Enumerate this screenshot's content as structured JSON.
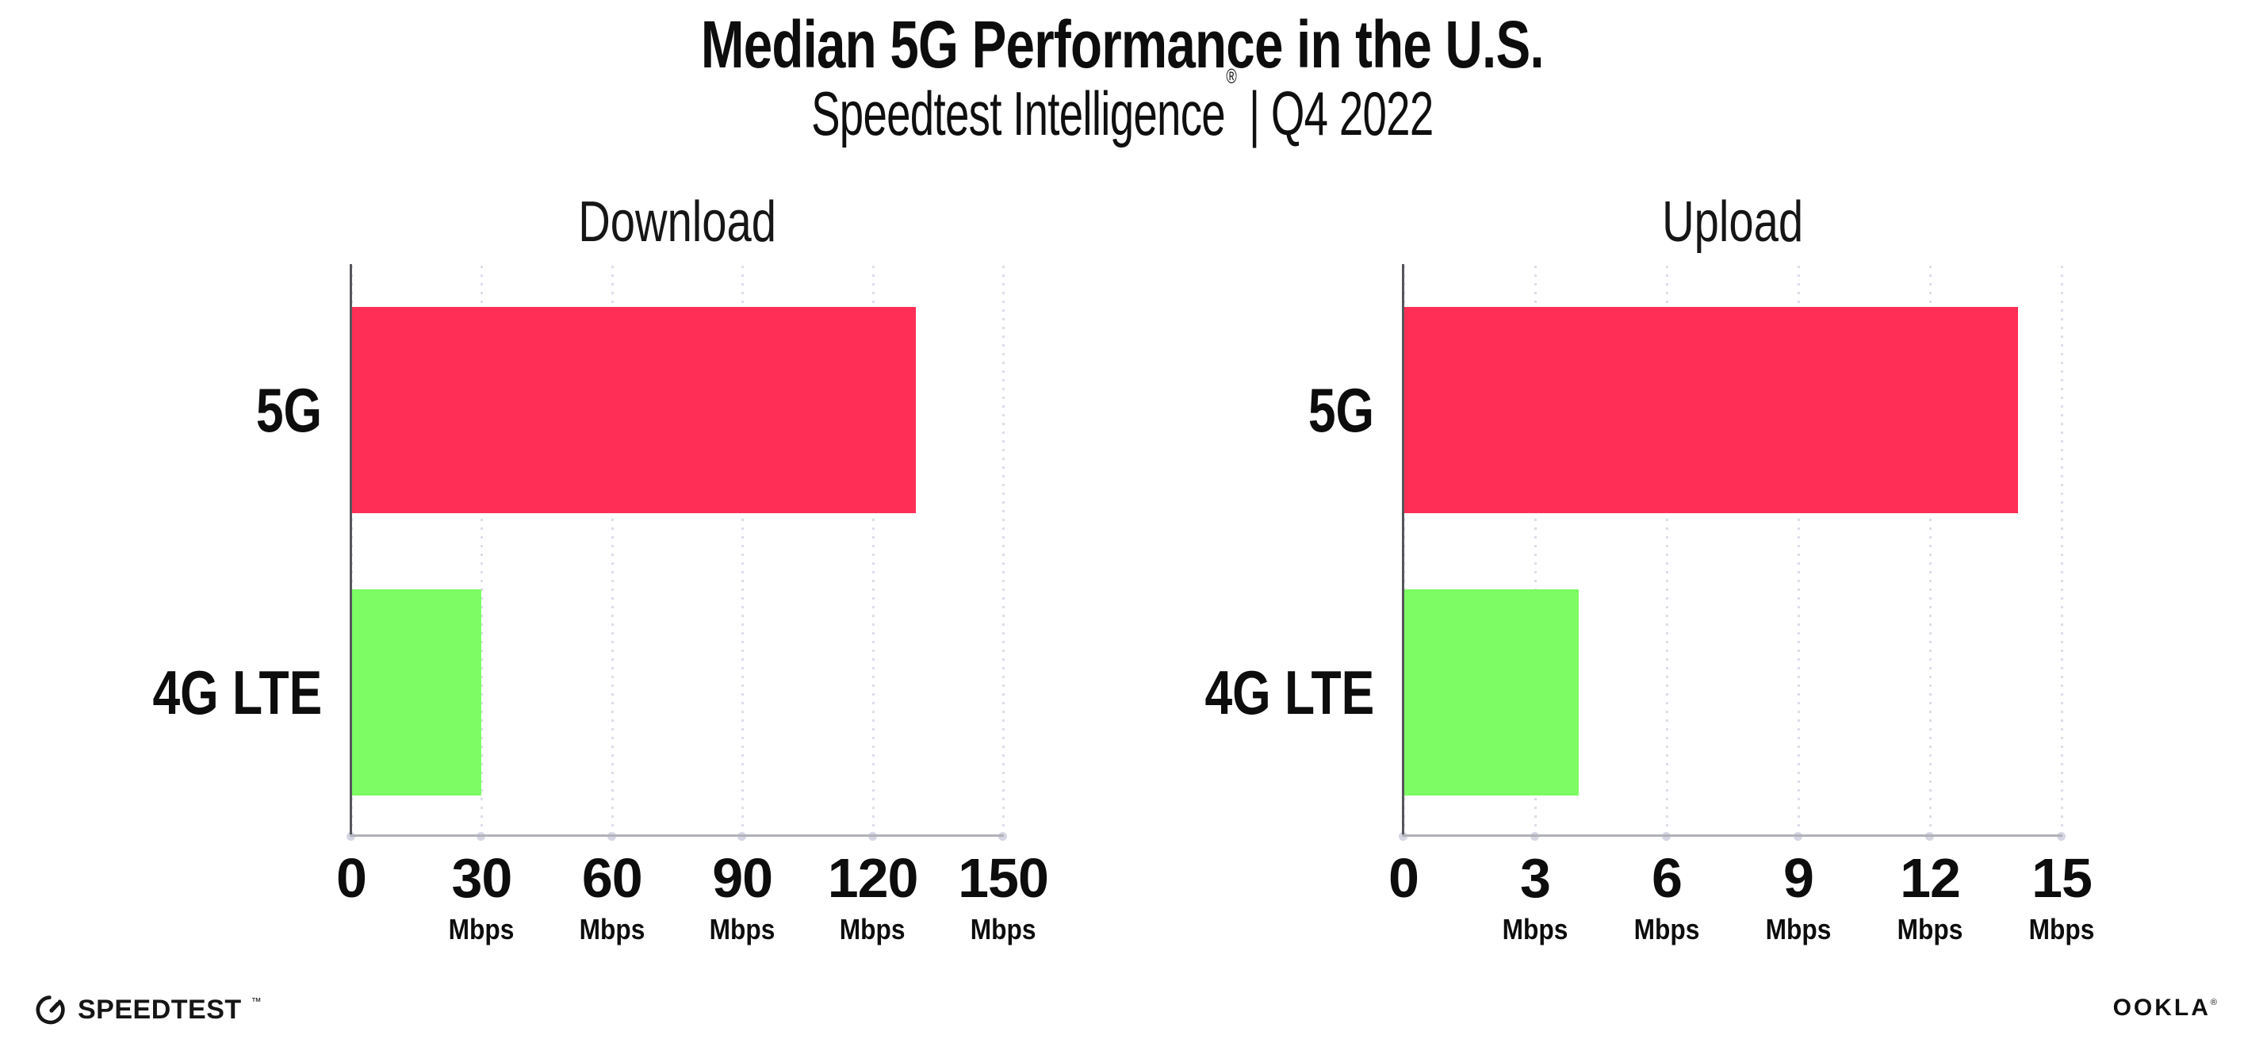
{
  "header": {
    "title": "Median 5G Performance in the U.S.",
    "subtitle_brand": "Speedtest Intelligence",
    "subtitle_reg": "®",
    "subtitle_rest": " | Q4 2022"
  },
  "chart_data": [
    {
      "type": "bar",
      "orientation": "horizontal",
      "title": "Download",
      "categories": [
        "5G",
        "4G LTE"
      ],
      "values": [
        130,
        30
      ],
      "unit": "Mbps",
      "xlim": [
        0,
        150
      ],
      "xticks": [
        0,
        30,
        60,
        90,
        120,
        150
      ],
      "grid": "dotted-vertical",
      "legend": "none",
      "bar_colors": [
        "#ff2e57",
        "#7dfc64"
      ]
    },
    {
      "type": "bar",
      "orientation": "horizontal",
      "title": "Upload",
      "categories": [
        "5G",
        "4G LTE"
      ],
      "values": [
        14,
        4
      ],
      "unit": "Mbps",
      "xlim": [
        0,
        15
      ],
      "xticks": [
        0,
        3,
        6,
        9,
        12,
        15
      ],
      "grid": "dotted-vertical",
      "legend": "none",
      "bar_colors": [
        "#ff2e57",
        "#7dfc64"
      ]
    }
  ],
  "colors": {
    "bar_5g": "#ff2e57",
    "bar_4g_lte": "#7dfc64",
    "gridline": "#dcdde9",
    "y_axis": "#55565c",
    "x_axis": "#b1b2b8",
    "text": "#0d0d0d"
  },
  "footer": {
    "speedtest_label": "SPEEDTEST",
    "speedtest_tm": "™",
    "ookla_label": "OOKLA",
    "ookla_reg": "®"
  }
}
